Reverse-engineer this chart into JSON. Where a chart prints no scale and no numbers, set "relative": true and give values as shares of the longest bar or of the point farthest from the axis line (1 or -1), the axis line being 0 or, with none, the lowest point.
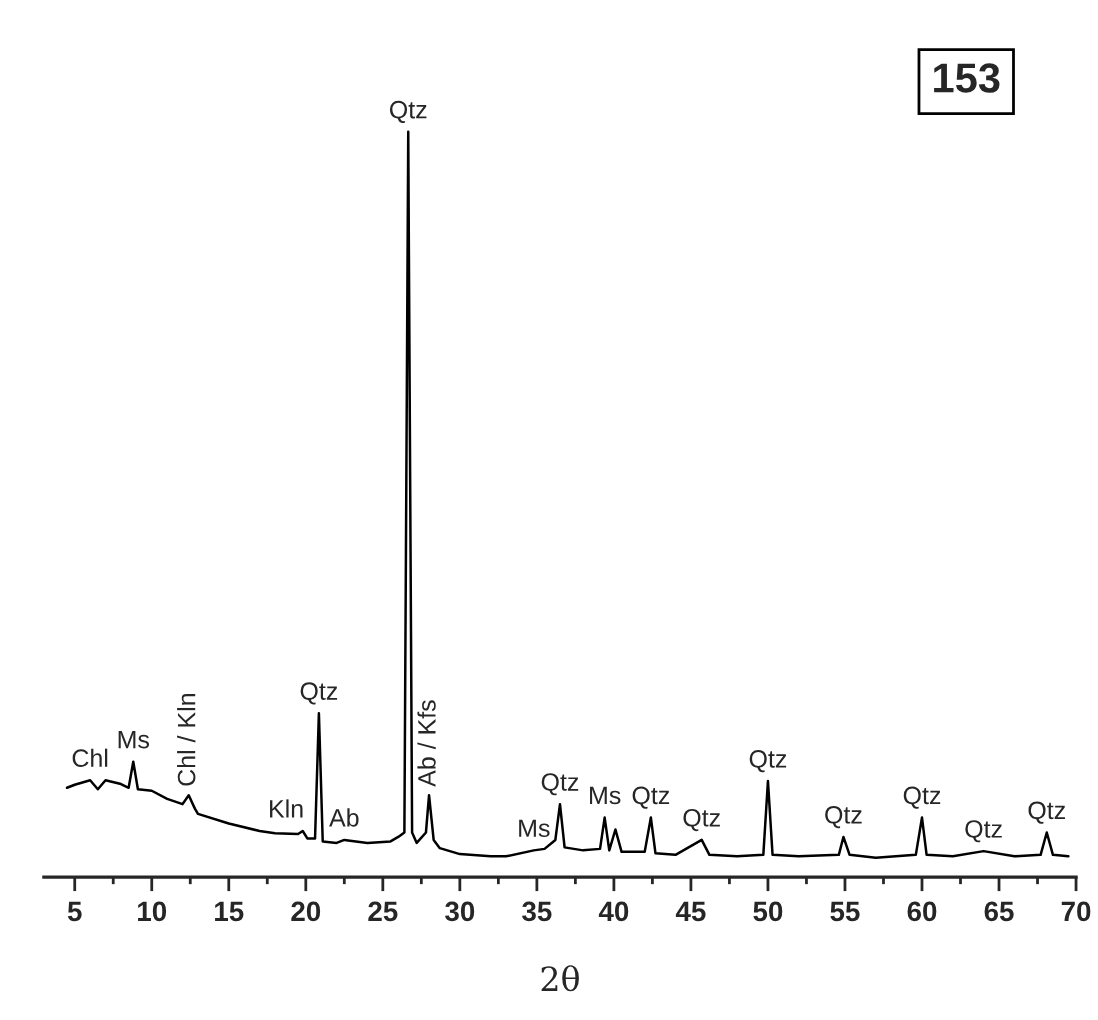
{
  "chart_data": {
    "type": "line",
    "relative": true,
    "xlabel": "2θ",
    "xlim": [
      3,
      70
    ],
    "xticks": [
      5,
      {
        "value": 7.5,
        "label": null
      },
      10,
      {
        "value": 12.5,
        "label": null
      },
      15,
      {
        "value": 17.5,
        "label": null
      },
      20,
      {
        "value": 22.5,
        "label": null
      },
      25,
      {
        "value": 27.5,
        "label": null
      },
      30,
      {
        "value": 32.5,
        "label": null
      },
      35,
      {
        "value": 37.5,
        "label": null
      },
      40,
      {
        "value": 42.5,
        "label": null
      },
      45,
      {
        "value": 47.5,
        "label": null
      },
      50,
      {
        "value": 52.5,
        "label": null
      },
      55,
      {
        "value": 57.5,
        "label": null
      },
      60,
      {
        "value": 62.5,
        "label": null
      },
      65,
      {
        "value": 67.5,
        "label": null
      },
      70
    ],
    "series": [
      {
        "color": "#000000",
        "x": [
          4.5,
          5,
          6,
          6.5,
          7,
          8,
          8.5,
          8.8,
          9.1,
          10,
          11,
          12,
          12.4,
          12.8,
          13,
          15,
          17,
          18,
          19.5,
          19.8,
          20.1,
          20.6,
          20.85,
          21.1,
          22,
          22.5,
          24,
          25.5,
          26,
          26.4,
          26.65,
          26.9,
          27.2,
          27.8,
          28,
          28.3,
          28.7,
          30,
          32,
          33,
          34.8,
          35.5,
          36.2,
          36.5,
          36.8,
          38,
          39.1,
          39.4,
          39.7,
          40.1,
          40.5,
          42,
          42.4,
          42.7,
          44,
          45.7,
          46.2,
          48,
          49.7,
          50,
          50.3,
          52,
          54.6,
          54.9,
          55.3,
          57,
          59.6,
          60,
          60.3,
          62,
          64,
          66,
          67.7,
          68.1,
          68.5,
          69.5
        ],
        "values": [
          0.12,
          0.124,
          0.13,
          0.118,
          0.13,
          0.125,
          0.12,
          0.155,
          0.118,
          0.116,
          0.105,
          0.098,
          0.11,
          0.092,
          0.085,
          0.072,
          0.062,
          0.059,
          0.058,
          0.062,
          0.052,
          0.052,
          0.22,
          0.048,
          0.046,
          0.05,
          0.046,
          0.048,
          0.054,
          0.06,
          1.0,
          0.06,
          0.046,
          0.06,
          0.11,
          0.05,
          0.039,
          0.031,
          0.028,
          0.028,
          0.036,
          0.038,
          0.05,
          0.098,
          0.04,
          0.036,
          0.038,
          0.08,
          0.036,
          0.064,
          0.034,
          0.034,
          0.08,
          0.032,
          0.03,
          0.05,
          0.03,
          0.028,
          0.03,
          0.129,
          0.03,
          0.028,
          0.03,
          0.054,
          0.03,
          0.026,
          0.03,
          0.08,
          0.03,
          0.028,
          0.035,
          0.028,
          0.03,
          0.06,
          0.03,
          0.028
        ]
      }
    ],
    "annotations": [
      {
        "text": "Chl",
        "x": 6,
        "y": 0.13
      },
      {
        "text": "Ms",
        "x": 8.8,
        "y": 0.155
      },
      {
        "text": "Chl / Kln",
        "x": 12.4,
        "y": 0.11
      },
      {
        "text": "Kln",
        "x": 19.8,
        "y": 0.062
      },
      {
        "text": "Qtz",
        "x": 20.85,
        "y": 0.22
      },
      {
        "text": "Ab",
        "x": 22.5,
        "y": 0.05
      },
      {
        "text": "Qtz",
        "x": 26.65,
        "y": 1.0
      },
      {
        "text": "Ab / Kfs",
        "x": 28,
        "y": 0.11
      },
      {
        "text": "Ms",
        "x": 34.8,
        "y": 0.036
      },
      {
        "text": "Qtz",
        "x": 36.5,
        "y": 0.098
      },
      {
        "text": "Ms",
        "x": 39.4,
        "y": 0.08
      },
      {
        "text": "Qtz",
        "x": 42.4,
        "y": 0.08
      },
      {
        "text": "Qtz",
        "x": 45.7,
        "y": 0.05
      },
      {
        "text": "Qtz",
        "x": 50,
        "y": 0.129
      },
      {
        "text": "Qtz",
        "x": 54.9,
        "y": 0.054
      },
      {
        "text": "Qtz",
        "x": 60,
        "y": 0.08
      },
      {
        "text": "Qtz",
        "x": 64,
        "y": 0.035
      },
      {
        "text": "Qtz",
        "x": 68.1,
        "y": 0.06
      },
      "153"
    ]
  }
}
